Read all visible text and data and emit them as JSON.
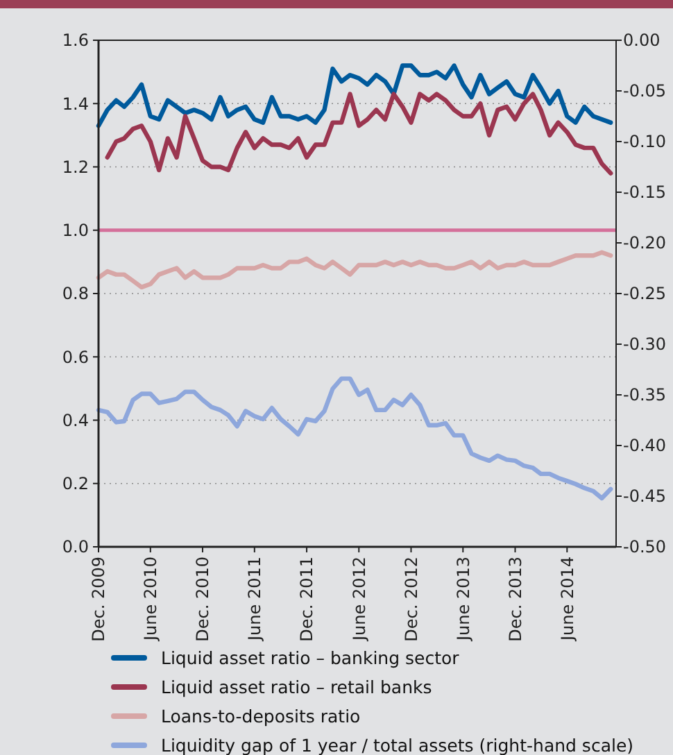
{
  "chart_data": {
    "type": "line",
    "x": [
      "2009-12",
      "2010-01",
      "2010-02",
      "2010-03",
      "2010-04",
      "2010-05",
      "2010-06",
      "2010-07",
      "2010-08",
      "2010-09",
      "2010-10",
      "2010-11",
      "2010-12",
      "2011-01",
      "2011-02",
      "2011-03",
      "2011-04",
      "2011-05",
      "2011-06",
      "2011-07",
      "2011-08",
      "2011-09",
      "2011-10",
      "2011-11",
      "2011-12",
      "2012-01",
      "2012-02",
      "2012-03",
      "2012-04",
      "2012-05",
      "2012-06",
      "2012-07",
      "2012-08",
      "2012-09",
      "2012-10",
      "2012-11",
      "2012-12",
      "2013-01",
      "2013-02",
      "2013-03",
      "2013-04",
      "2013-05",
      "2013-06",
      "2013-07",
      "2013-08",
      "2013-09",
      "2013-10",
      "2013-11",
      "2013-12",
      "2014-01",
      "2014-02",
      "2014-03",
      "2014-04",
      "2014-05",
      "2014-06",
      "2014-07",
      "2014-08",
      "2014-09",
      "2014-10",
      "2014-11"
    ],
    "series": [
      {
        "name": "Liquid asset ratio – banking sector",
        "color": "#005a9c",
        "values": [
          1.33,
          1.38,
          1.41,
          1.39,
          1.42,
          1.46,
          1.36,
          1.35,
          1.41,
          1.39,
          1.37,
          1.38,
          1.37,
          1.35,
          1.42,
          1.36,
          1.38,
          1.39,
          1.35,
          1.34,
          1.42,
          1.36,
          1.36,
          1.35,
          1.36,
          1.34,
          1.38,
          1.51,
          1.47,
          1.49,
          1.48,
          1.46,
          1.49,
          1.47,
          1.43,
          1.52,
          1.52,
          1.49,
          1.49,
          1.5,
          1.48,
          1.52,
          1.46,
          1.42,
          1.49,
          1.43,
          1.45,
          1.47,
          1.43,
          1.42,
          1.49,
          1.45,
          1.4,
          1.44,
          1.36,
          1.34,
          1.39,
          1.36,
          1.35,
          1.34
        ]
      },
      {
        "name": "Liquid asset ratio – retail banks",
        "color": "#9b3650",
        "values": [
          null,
          1.23,
          1.28,
          1.29,
          1.32,
          1.33,
          1.28,
          1.19,
          1.29,
          1.23,
          1.36,
          1.29,
          1.22,
          1.2,
          1.2,
          1.19,
          1.26,
          1.31,
          1.26,
          1.29,
          1.27,
          1.27,
          1.26,
          1.29,
          1.23,
          1.27,
          1.27,
          1.34,
          1.34,
          1.43,
          1.33,
          1.35,
          1.38,
          1.35,
          1.43,
          1.39,
          1.34,
          1.43,
          1.41,
          1.43,
          1.41,
          1.38,
          1.36,
          1.36,
          1.4,
          1.3,
          1.38,
          1.39,
          1.35,
          1.4,
          1.43,
          1.38,
          1.3,
          1.34,
          1.31,
          1.27,
          1.26,
          1.26,
          1.21,
          1.18
        ]
      },
      {
        "name": "Loans-to-deposits ratio",
        "color": "#d7a6a6",
        "values": [
          0.85,
          0.87,
          0.86,
          0.86,
          0.84,
          0.82,
          0.83,
          0.86,
          0.87,
          0.88,
          0.85,
          0.87,
          0.85,
          0.85,
          0.85,
          0.86,
          0.88,
          0.88,
          0.88,
          0.89,
          0.88,
          0.88,
          0.9,
          0.9,
          0.91,
          0.89,
          0.88,
          0.9,
          0.88,
          0.86,
          0.89,
          0.89,
          0.89,
          0.9,
          0.89,
          0.9,
          0.89,
          0.9,
          0.89,
          0.89,
          0.88,
          0.88,
          0.89,
          0.9,
          0.88,
          0.9,
          0.88,
          0.89,
          0.89,
          0.9,
          0.89,
          0.89,
          0.89,
          0.9,
          0.91,
          0.92,
          0.92,
          0.92,
          0.93,
          0.92
        ]
      },
      {
        "name": "Liquidity gap of 1 year / total assets (right-hand scale)",
        "color": "#8ea7dc",
        "axis": "y2",
        "values": [
          -0.365,
          -0.367,
          -0.377,
          -0.376,
          -0.355,
          -0.349,
          -0.349,
          -0.358,
          -0.356,
          -0.354,
          -0.347,
          -0.347,
          -0.355,
          -0.362,
          -0.365,
          -0.37,
          -0.381,
          -0.366,
          -0.371,
          -0.374,
          -0.363,
          -0.374,
          -0.381,
          -0.389,
          -0.374,
          -0.376,
          -0.366,
          -0.344,
          -0.334,
          -0.334,
          -0.35,
          -0.345,
          -0.365,
          -0.365,
          -0.355,
          -0.36,
          -0.35,
          -0.36,
          -0.38,
          -0.38,
          -0.378,
          -0.39,
          -0.39,
          -0.408,
          -0.412,
          -0.415,
          -0.41,
          -0.414,
          -0.415,
          -0.42,
          -0.422,
          -0.428,
          -0.428,
          -0.432,
          -0.435,
          -0.438,
          -0.442,
          -0.445,
          -0.452,
          -0.443
        ]
      }
    ],
    "xlim": [
      "2009-12-01",
      "2014-11-20"
    ],
    "xticks": [
      {
        "value": "2009-12",
        "label": "Dec. 2009"
      },
      {
        "value": "2010-06",
        "label": "June 2010"
      },
      {
        "value": "2010-12",
        "label": "Dec. 2010"
      },
      {
        "value": "2011-06",
        "label": "June 2011"
      },
      {
        "value": "2011-12",
        "label": "Dec. 2011"
      },
      {
        "value": "2012-06",
        "label": "June 2012"
      },
      {
        "value": "2012-12",
        "label": "Dec. 2012"
      },
      {
        "value": "2013-06",
        "label": "June 2013"
      },
      {
        "value": "2013-12",
        "label": "Dec. 2013"
      },
      {
        "value": "2014-06",
        "label": "June 2014"
      }
    ],
    "ylim": [
      0,
      1.6
    ],
    "yticks": [
      {
        "value": 0,
        "label": "0.0"
      },
      0.2,
      0.4,
      0.6,
      0.8,
      {
        "value": 1,
        "label": "1.0"
      },
      1.2,
      1.4,
      1.6
    ],
    "y2lim": [
      -0.5,
      0
    ],
    "y2ticks": [
      {
        "value": -0.5,
        "label": "-0.50"
      },
      -0.45,
      {
        "value": -0.4,
        "label": "-0.40"
      },
      -0.35,
      {
        "value": -0.3,
        "label": "-0.30"
      },
      -0.25,
      {
        "value": -0.2,
        "label": "-0.20"
      },
      -0.15,
      {
        "value": -0.1,
        "label": "-0.10"
      },
      -0.05,
      {
        "value": 0,
        "label": "0.00"
      }
    ],
    "ref_lines": [
      {
        "axis": "y",
        "value": 1,
        "color": "#d4709a"
      }
    ],
    "grid": "y",
    "legend": "bottom",
    "line_style": "solid",
    "marker": "none"
  }
}
